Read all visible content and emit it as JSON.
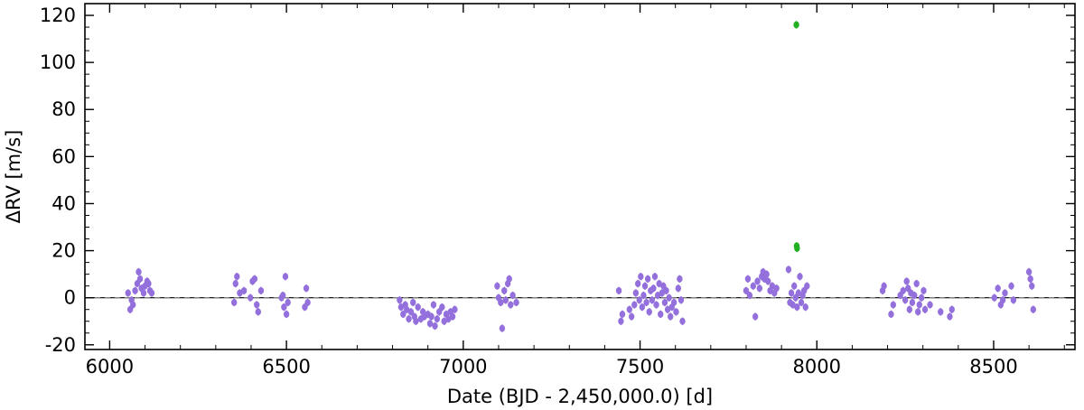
{
  "chart_data": {
    "type": "scatter",
    "title": "",
    "xlabel": "Date (BJD - 2,450,000.0) [d]",
    "ylabel": "ΔRV [m/s]",
    "xlim": [
      5930,
      8730
    ],
    "ylim": [
      -22,
      125
    ],
    "x_ticks": [
      6000,
      6500,
      7000,
      7500,
      8000,
      8500
    ],
    "y_ticks": [
      -20,
      0,
      20,
      40,
      60,
      80,
      100,
      120
    ],
    "x_tick_labels": [
      "6000",
      "6500",
      "7000",
      "7500",
      "8000",
      "8500"
    ],
    "y_tick_labels": [
      "-20",
      "0",
      "20",
      "40",
      "60",
      "80",
      "100",
      "120"
    ],
    "reference_line": {
      "y": 0,
      "style": "dashed"
    },
    "grid": false,
    "series": [
      {
        "color": "#9370DB",
        "error_bar": 1.6,
        "points": [
          [
            6052,
            2
          ],
          [
            6058,
            -5
          ],
          [
            6062,
            -1
          ],
          [
            6066,
            -3
          ],
          [
            6072,
            3
          ],
          [
            6078,
            6
          ],
          [
            6082,
            11
          ],
          [
            6086,
            8
          ],
          [
            6090,
            4
          ],
          [
            6096,
            2
          ],
          [
            6100,
            5
          ],
          [
            6106,
            7
          ],
          [
            6110,
            6
          ],
          [
            6114,
            3
          ],
          [
            6119,
            2
          ],
          [
            6352,
            -2
          ],
          [
            6356,
            6
          ],
          [
            6360,
            9
          ],
          [
            6368,
            2
          ],
          [
            6380,
            3
          ],
          [
            6398,
            0
          ],
          [
            6404,
            7
          ],
          [
            6410,
            8
          ],
          [
            6416,
            -3
          ],
          [
            6420,
            -6
          ],
          [
            6428,
            3
          ],
          [
            6486,
            0
          ],
          [
            6490,
            1
          ],
          [
            6493,
            -4
          ],
          [
            6497,
            9
          ],
          [
            6500,
            -7
          ],
          [
            6504,
            -2
          ],
          [
            6552,
            -4
          ],
          [
            6556,
            4
          ],
          [
            6560,
            -2
          ],
          [
            6820,
            -1
          ],
          [
            6824,
            -4
          ],
          [
            6830,
            -7
          ],
          [
            6836,
            -3
          ],
          [
            6840,
            -5
          ],
          [
            6846,
            -9
          ],
          [
            6852,
            -6
          ],
          [
            6858,
            -2
          ],
          [
            6862,
            -8
          ],
          [
            6866,
            -10
          ],
          [
            6872,
            -4
          ],
          [
            6880,
            -9
          ],
          [
            6886,
            -6
          ],
          [
            6890,
            -8
          ],
          [
            6900,
            -7
          ],
          [
            6906,
            -11
          ],
          [
            6910,
            -8
          ],
          [
            6916,
            -3
          ],
          [
            6920,
            -12
          ],
          [
            6926,
            -9
          ],
          [
            6932,
            -6
          ],
          [
            6940,
            -4
          ],
          [
            6946,
            -10
          ],
          [
            6952,
            -7
          ],
          [
            6958,
            -9
          ],
          [
            6964,
            -6
          ],
          [
            6970,
            -8
          ],
          [
            6976,
            -5
          ],
          [
            7096,
            5
          ],
          [
            7100,
            0
          ],
          [
            7106,
            -2
          ],
          [
            7110,
            -13
          ],
          [
            7116,
            3
          ],
          [
            7120,
            -1
          ],
          [
            7126,
            6
          ],
          [
            7130,
            8
          ],
          [
            7134,
            -3
          ],
          [
            7140,
            1
          ],
          [
            7150,
            -2
          ],
          [
            7440,
            3
          ],
          [
            7446,
            -10
          ],
          [
            7450,
            -7
          ],
          [
            7470,
            -5
          ],
          [
            7476,
            -8
          ],
          [
            7484,
            -3
          ],
          [
            7488,
            2
          ],
          [
            7494,
            6
          ],
          [
            7498,
            -1
          ],
          [
            7502,
            9
          ],
          [
            7506,
            -4
          ],
          [
            7510,
            1
          ],
          [
            7514,
            5
          ],
          [
            7518,
            -2
          ],
          [
            7522,
            8
          ],
          [
            7526,
            -6
          ],
          [
            7530,
            3
          ],
          [
            7534,
            -1
          ],
          [
            7538,
            4
          ],
          [
            7542,
            9
          ],
          [
            7546,
            -3
          ],
          [
            7550,
            1
          ],
          [
            7554,
            6
          ],
          [
            7558,
            -7
          ],
          [
            7562,
            2
          ],
          [
            7566,
            5
          ],
          [
            7570,
            -2
          ],
          [
            7574,
            3
          ],
          [
            7578,
            -5
          ],
          [
            7582,
            0
          ],
          [
            7586,
            -8
          ],
          [
            7590,
            -4
          ],
          [
            7596,
            -2
          ],
          [
            7602,
            -6
          ],
          [
            7608,
            4
          ],
          [
            7612,
            8
          ],
          [
            7616,
            -1
          ],
          [
            7620,
            -10
          ],
          [
            7800,
            3
          ],
          [
            7805,
            8
          ],
          [
            7810,
            1
          ],
          [
            7820,
            5
          ],
          [
            7826,
            -8
          ],
          [
            7832,
            7
          ],
          [
            7838,
            4
          ],
          [
            7844,
            9
          ],
          [
            7848,
            11
          ],
          [
            7852,
            8
          ],
          [
            7858,
            10
          ],
          [
            7862,
            7
          ],
          [
            7868,
            3
          ],
          [
            7874,
            5
          ],
          [
            7880,
            2
          ],
          [
            7886,
            4
          ],
          [
            7920,
            12
          ],
          [
            7924,
            -2
          ],
          [
            7928,
            2
          ],
          [
            7932,
            -3
          ],
          [
            7936,
            5
          ],
          [
            7940,
            0
          ],
          [
            7944,
            -4
          ],
          [
            7948,
            2
          ],
          [
            7952,
            9
          ],
          [
            7956,
            -2
          ],
          [
            7960,
            1
          ],
          [
            7964,
            3
          ],
          [
            7968,
            -4
          ],
          [
            7972,
            5
          ],
          [
            8186,
            3
          ],
          [
            8190,
            5
          ],
          [
            8210,
            -7
          ],
          [
            8216,
            -3
          ],
          [
            8236,
            1
          ],
          [
            8244,
            3
          ],
          [
            8250,
            -1
          ],
          [
            8254,
            7
          ],
          [
            8258,
            4
          ],
          [
            8262,
            -5
          ],
          [
            8266,
            2
          ],
          [
            8270,
            -2
          ],
          [
            8276,
            1
          ],
          [
            8282,
            6
          ],
          [
            8286,
            -6
          ],
          [
            8290,
            -3
          ],
          [
            8296,
            0
          ],
          [
            8302,
            3
          ],
          [
            8306,
            -5
          ],
          [
            8320,
            -3
          ],
          [
            8350,
            -6
          ],
          [
            8376,
            -8
          ],
          [
            8382,
            -5
          ],
          [
            8502,
            0
          ],
          [
            8512,
            4
          ],
          [
            8520,
            -3
          ],
          [
            8526,
            -1
          ],
          [
            8532,
            2
          ],
          [
            8550,
            5
          ],
          [
            8556,
            -1
          ],
          [
            8600,
            11
          ],
          [
            8604,
            8
          ],
          [
            8608,
            5
          ],
          [
            8612,
            -5
          ]
        ]
      },
      {
        "color": "#22B022",
        "error_bar": 1.6,
        "points": [
          [
            7942,
            116
          ],
          [
            7943,
            22
          ],
          [
            7944,
            21
          ]
        ]
      }
    ]
  }
}
